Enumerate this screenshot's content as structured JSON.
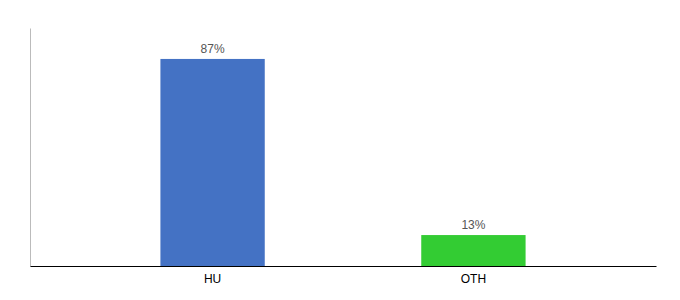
{
  "chart_data": {
    "type": "bar",
    "categories": [
      "HU",
      "OTH"
    ],
    "values": [
      87,
      13
    ],
    "value_labels": [
      "87%",
      "13%"
    ],
    "colors": [
      "#4472c4",
      "#33cc33"
    ],
    "ylim": [
      0,
      100
    ],
    "grid": false,
    "data_labels": true,
    "tick_labels": "x"
  }
}
